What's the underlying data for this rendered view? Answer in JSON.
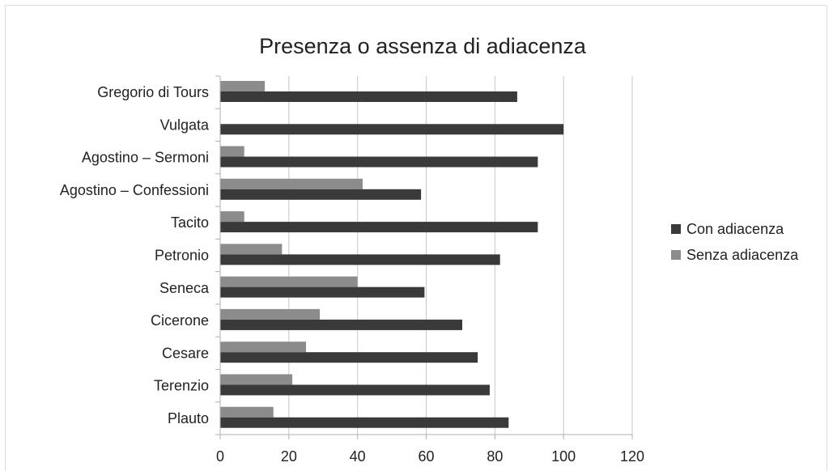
{
  "chart_data": {
    "type": "bar",
    "orientation": "horizontal",
    "title": "Presenza o assenza di adiacenza",
    "categories": [
      "Gregorio di Tours",
      "Vulgata",
      "Agostino – Sermoni",
      "Agostino – Confessioni",
      "Tacito",
      "Petronio",
      "Seneca",
      "Cicerone",
      "Cesare",
      "Terenzio",
      "Plauto"
    ],
    "series": [
      {
        "name": "Con adiacenza",
        "color": "#3a3a3a",
        "values": [
          86.5,
          100,
          92.5,
          58.5,
          92.5,
          81.5,
          59.5,
          70.5,
          75,
          78.5,
          84
        ]
      },
      {
        "name": "Senza adiacenza",
        "color": "#8c8c8c",
        "values": [
          13,
          null,
          7,
          41.5,
          7,
          18,
          40,
          29,
          25,
          21,
          15.5
        ]
      }
    ],
    "xlim": [
      0,
      120
    ],
    "xticks": [
      0,
      20,
      40,
      60,
      80,
      100,
      120
    ],
    "xlabel": "",
    "ylabel": "",
    "grid": "vertical",
    "legend": "right"
  }
}
